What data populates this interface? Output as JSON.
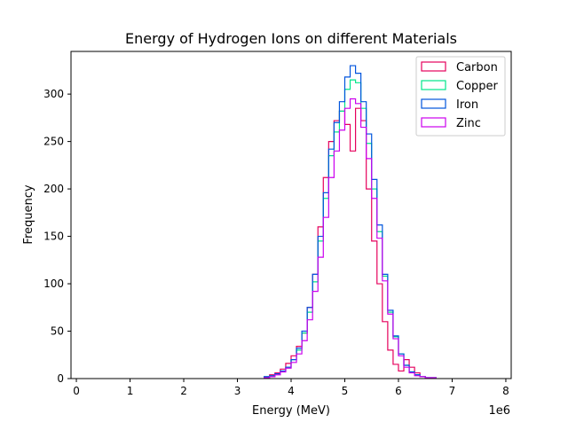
{
  "chart_data": {
    "type": "histogram",
    "title": "Energy of Hydrogen Ions on different Materials",
    "xlabel": "Energy (MeV)",
    "ylabel": "Frequency",
    "x_offset_label": "1e6",
    "xlim": [
      -0.1,
      8.1
    ],
    "ylim": [
      0,
      345
    ],
    "x_ticks": [
      0,
      1,
      2,
      3,
      4,
      5,
      6,
      7,
      8
    ],
    "y_ticks": [
      0,
      50,
      100,
      150,
      200,
      250,
      300
    ],
    "x_tick_labels": [
      "0",
      "1",
      "2",
      "3",
      "4",
      "5",
      "6",
      "7",
      "8"
    ],
    "y_tick_labels": [
      "0",
      "50",
      "100",
      "150",
      "200",
      "250",
      "300"
    ],
    "grid": false,
    "legend_position": "upper right",
    "series": [
      {
        "name": "Carbon",
        "color": "#e6005c",
        "bin_edges": [
          3.5,
          3.6,
          3.7,
          3.8,
          3.9,
          4.0,
          4.1,
          4.2,
          4.3,
          4.4,
          4.5,
          4.6,
          4.7,
          4.8,
          4.9,
          5.0,
          5.1,
          5.2,
          5.3,
          5.4,
          5.5,
          5.6,
          5.7,
          5.8,
          5.9,
          6.0,
          6.1,
          6.2,
          6.3,
          6.4,
          6.5
        ],
        "counts": [
          2,
          4,
          6,
          10,
          16,
          24,
          34,
          48,
          75,
          110,
          160,
          212,
          250,
          272,
          282,
          268,
          240,
          285,
          272,
          200,
          145,
          100,
          60,
          30,
          15,
          8,
          20,
          12,
          6,
          2
        ]
      },
      {
        "name": "Copper",
        "color": "#00e68a",
        "bin_edges": [
          3.5,
          3.6,
          3.7,
          3.8,
          3.9,
          4.0,
          4.1,
          4.2,
          4.3,
          4.4,
          4.5,
          4.6,
          4.7,
          4.8,
          4.9,
          5.0,
          5.1,
          5.2,
          5.3,
          5.4,
          5.5,
          5.6,
          5.7,
          5.8,
          5.9,
          6.0,
          6.1,
          6.2,
          6.3,
          6.4,
          6.5,
          6.6,
          6.7
        ],
        "counts": [
          2,
          3,
          5,
          8,
          12,
          20,
          30,
          48,
          70,
          102,
          145,
          190,
          235,
          260,
          282,
          305,
          315,
          312,
          285,
          248,
          200,
          155,
          108,
          70,
          44,
          26,
          14,
          7,
          4,
          2,
          1,
          1
        ]
      },
      {
        "name": "Iron",
        "color": "#0055dd",
        "bin_edges": [
          3.5,
          3.6,
          3.7,
          3.8,
          3.9,
          4.0,
          4.1,
          4.2,
          4.3,
          4.4,
          4.5,
          4.6,
          4.7,
          4.8,
          4.9,
          5.0,
          5.1,
          5.2,
          5.3,
          5.4,
          5.5,
          5.6,
          5.7,
          5.8,
          5.9,
          6.0,
          6.1,
          6.2,
          6.3,
          6.4,
          6.5,
          6.6,
          6.7
        ],
        "counts": [
          2,
          3,
          5,
          8,
          12,
          20,
          32,
          50,
          75,
          110,
          150,
          196,
          242,
          270,
          292,
          318,
          330,
          322,
          292,
          258,
          210,
          162,
          110,
          72,
          45,
          26,
          14,
          7,
          4,
          2,
          1,
          1
        ]
      },
      {
        "name": "Zinc",
        "color": "#cc00ee",
        "bin_edges": [
          3.5,
          3.6,
          3.7,
          3.8,
          3.9,
          4.0,
          4.1,
          4.2,
          4.3,
          4.4,
          4.5,
          4.6,
          4.7,
          4.8,
          4.9,
          5.0,
          5.1,
          5.2,
          5.3,
          5.4,
          5.5,
          5.6,
          5.7,
          5.8,
          5.9,
          6.0,
          6.1,
          6.2,
          6.3,
          6.4,
          6.5,
          6.6,
          6.7
        ],
        "counts": [
          1,
          2,
          4,
          7,
          11,
          17,
          26,
          40,
          62,
          92,
          128,
          170,
          212,
          240,
          262,
          285,
          295,
          290,
          265,
          232,
          190,
          148,
          103,
          68,
          42,
          24,
          12,
          6,
          3,
          2,
          1,
          1
        ]
      }
    ]
  }
}
